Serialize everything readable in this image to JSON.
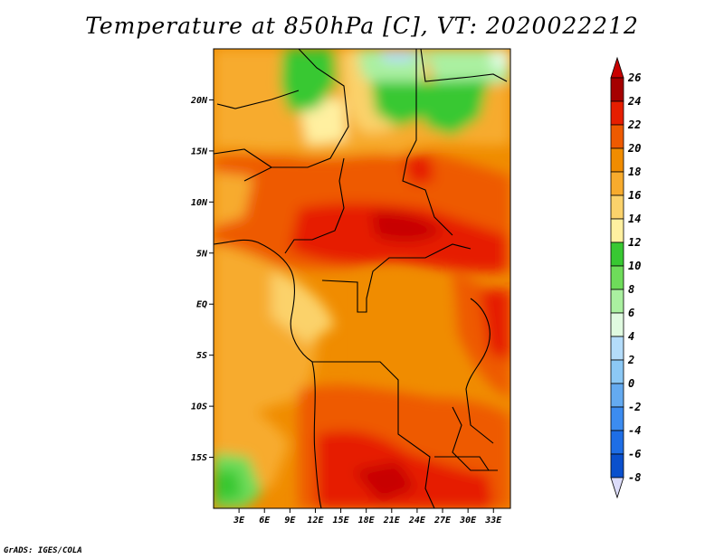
{
  "title": "Temperature at 850hPa [C], VT: 2020022212",
  "credit": "GrADS: IGES/COLA",
  "map": {
    "variable": "Temperature at 850hPa",
    "units": "C",
    "valid_time": "2020022212",
    "lon_range": [
      0,
      35
    ],
    "lat_range": [
      -20,
      25
    ],
    "lat_ticks": [
      {
        "value": 20,
        "label": "20N"
      },
      {
        "value": 15,
        "label": "15N"
      },
      {
        "value": 10,
        "label": "10N"
      },
      {
        "value": 5,
        "label": "5N"
      },
      {
        "value": 0,
        "label": "EQ"
      },
      {
        "value": -5,
        "label": "5S"
      },
      {
        "value": -10,
        "label": "10S"
      },
      {
        "value": -15,
        "label": "15S"
      }
    ],
    "lon_ticks": [
      {
        "value": 3,
        "label": "3E"
      },
      {
        "value": 6,
        "label": "6E"
      },
      {
        "value": 9,
        "label": "9E"
      },
      {
        "value": 12,
        "label": "12E"
      },
      {
        "value": 15,
        "label": "15E"
      },
      {
        "value": 18,
        "label": "18E"
      },
      {
        "value": 21,
        "label": "21E"
      },
      {
        "value": 24,
        "label": "24E"
      },
      {
        "value": 27,
        "label": "27E"
      },
      {
        "value": 30,
        "label": "30E"
      },
      {
        "value": 33,
        "label": "33E"
      }
    ]
  },
  "colorbar": {
    "levels": [
      {
        "label": "26",
        "color": "#a50000"
      },
      {
        "label": "24",
        "color": "#e61e00"
      },
      {
        "label": "22",
        "color": "#ee5a00"
      },
      {
        "label": "20",
        "color": "#f08c00"
      },
      {
        "label": "18",
        "color": "#f7ab2d"
      },
      {
        "label": "16",
        "color": "#fbd26b"
      },
      {
        "label": "14",
        "color": "#fff0a0"
      },
      {
        "label": "12",
        "color": "#38c832"
      },
      {
        "label": "10",
        "color": "#6edc5a"
      },
      {
        "label": "8",
        "color": "#aaf0a0"
      },
      {
        "label": "6",
        "color": "#e0fae0"
      },
      {
        "label": "4",
        "color": "#b4dcfa"
      },
      {
        "label": "2",
        "color": "#8cc8f5"
      },
      {
        "label": "0",
        "color": "#64aaf0"
      },
      {
        "label": "-2",
        "color": "#3c8cf0"
      },
      {
        "label": "-4",
        "color": "#1e6ee6"
      },
      {
        "label": "-6",
        "color": "#0a50cd"
      },
      {
        "label": "-8",
        "color": "#08229c"
      }
    ],
    "top_color": "#c80000",
    "bottom_color": "#dcdcfa"
  }
}
